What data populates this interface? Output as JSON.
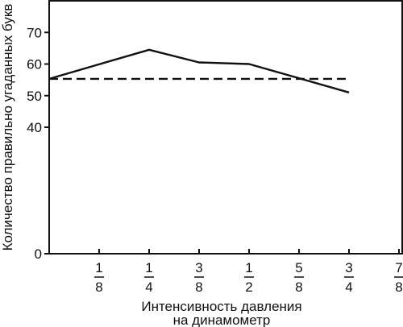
{
  "chart_data": {
    "type": "line",
    "xlabel": [
      "Интенсивность давления",
      "на динамометр"
    ],
    "ylabel": "Количество правильно угаданных букв",
    "x_ticks": [
      {
        "num": "1",
        "den": "8",
        "value": 0.125
      },
      {
        "num": "1",
        "den": "4",
        "value": 0.25
      },
      {
        "num": "3",
        "den": "8",
        "value": 0.375
      },
      {
        "num": "1",
        "den": "2",
        "value": 0.5
      },
      {
        "num": "5",
        "den": "8",
        "value": 0.625
      },
      {
        "num": "3",
        "den": "4",
        "value": 0.75
      },
      {
        "num": "7",
        "den": "8",
        "value": 0.875
      }
    ],
    "y_ticks": [
      0,
      40,
      50,
      60,
      70
    ],
    "xlim": [
      0,
      0.875
    ],
    "ylim": [
      0,
      80
    ],
    "series": [
      {
        "style": "solid",
        "x": [
          0,
          0.25,
          0.375,
          0.5,
          0.75
        ],
        "y": [
          55.3,
          64.5,
          60.5,
          60.0,
          51.0
        ]
      },
      {
        "style": "dashed",
        "x": [
          0,
          0.75
        ],
        "y": [
          55.3,
          55.3
        ]
      }
    ],
    "grid": false,
    "legend": "none"
  }
}
